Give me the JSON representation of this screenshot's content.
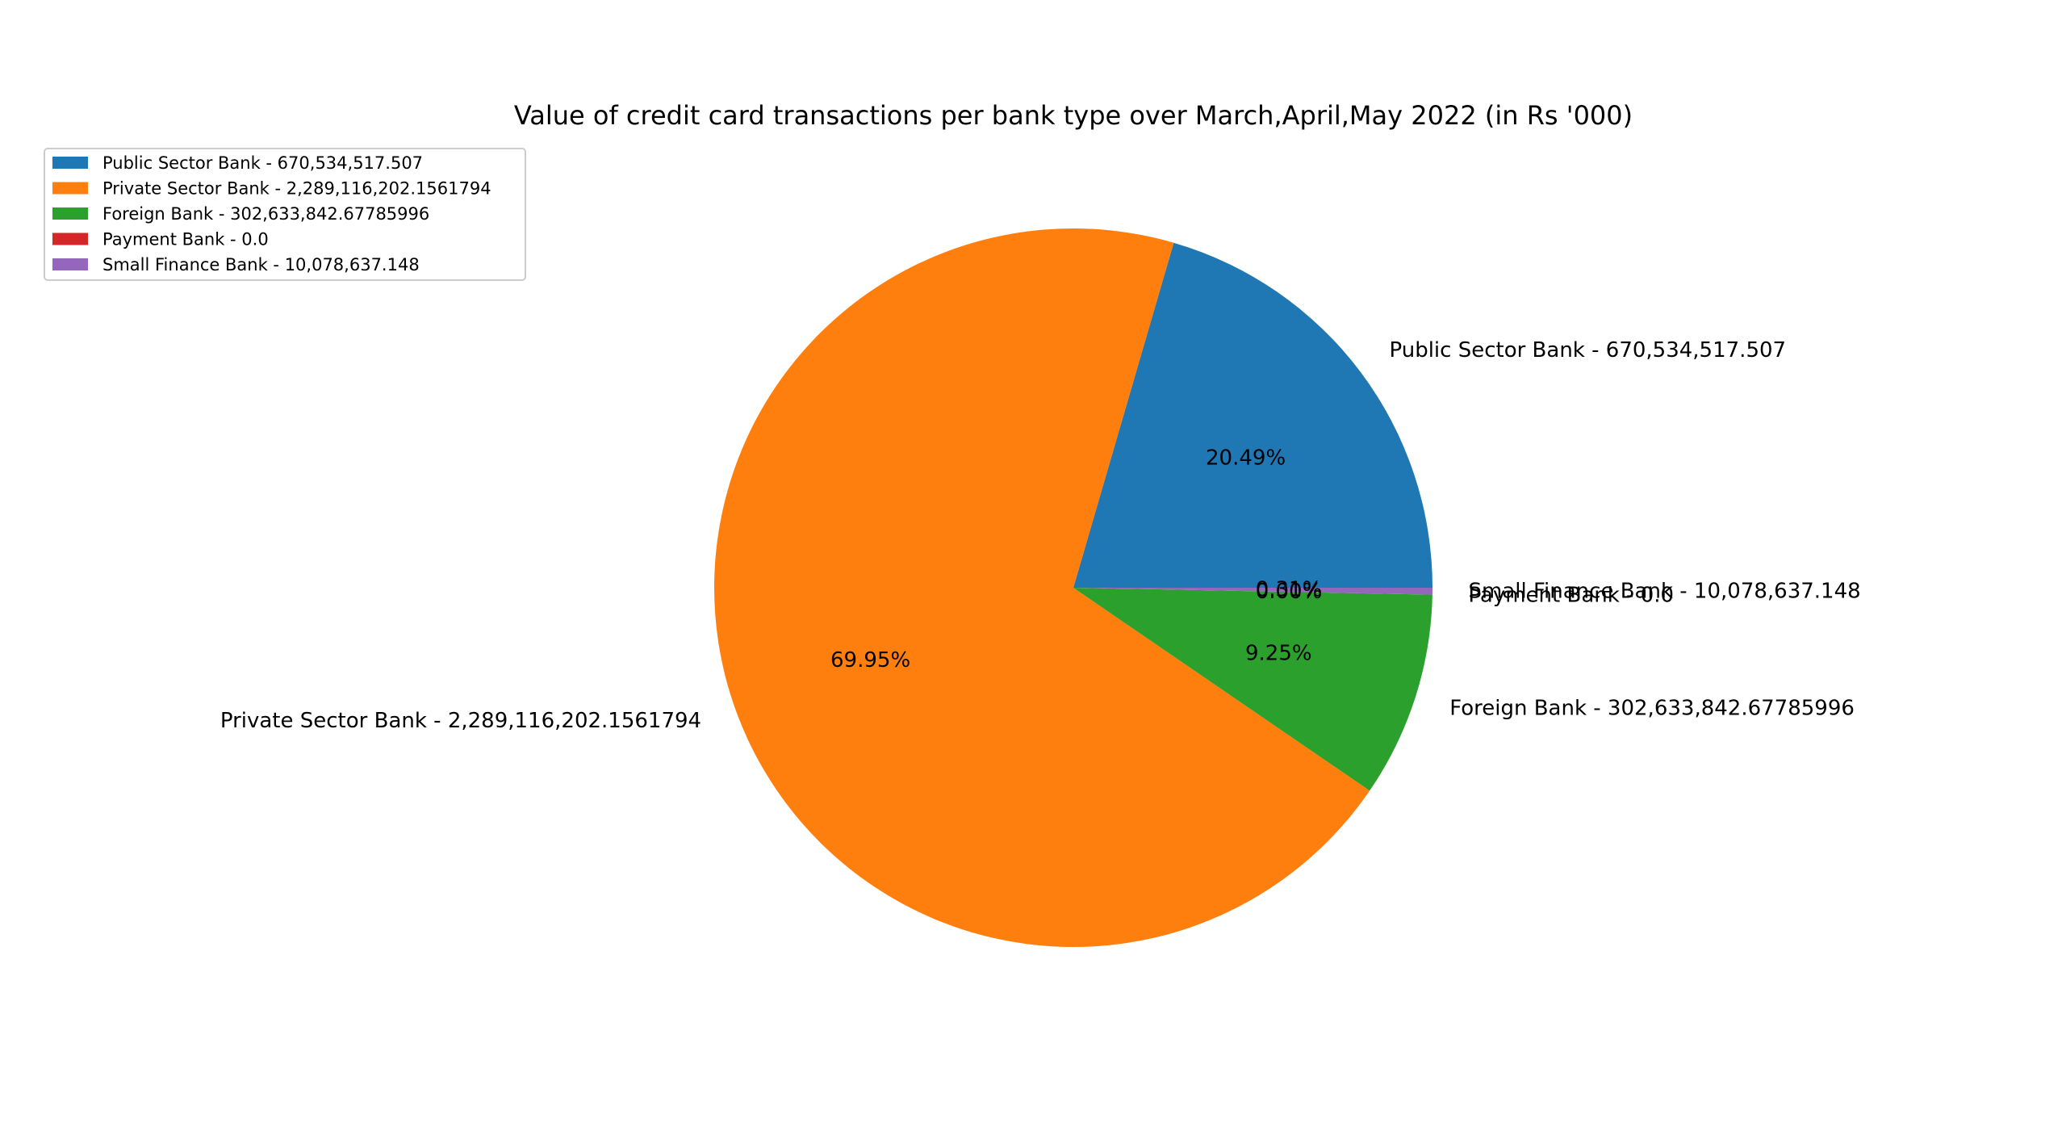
{
  "chart_data": {
    "type": "pie",
    "title": "Value of credit card transactions per bank type over March,April,May 2022 (in Rs '000)",
    "slices": [
      {
        "label": "Public Sector Bank - 670,534,517.507",
        "value": 670534517.507,
        "pct_label": "20.49%",
        "color": "#1f77b4"
      },
      {
        "label": "Private Sector Bank - 2,289,116,202.1561794",
        "value": 2289116202.1561794,
        "pct_label": "69.95%",
        "color": "#ff7f0e"
      },
      {
        "label": "Foreign Bank - 302,633,842.67785996",
        "value": 302633842.67785996,
        "pct_label": "9.25%",
        "color": "#2ca02c"
      },
      {
        "label": "Payment Bank - 0.0",
        "value": 0.0,
        "pct_label": "0.00%",
        "color": "#d62728"
      },
      {
        "label": "Small Finance Bank - 10,078,637.148",
        "value": 10078637.148,
        "pct_label": "0.31%",
        "color": "#9467bd"
      }
    ],
    "legend_placement": "upper-left",
    "start_angle_deg": 0,
    "direction": "counterclockwise"
  }
}
